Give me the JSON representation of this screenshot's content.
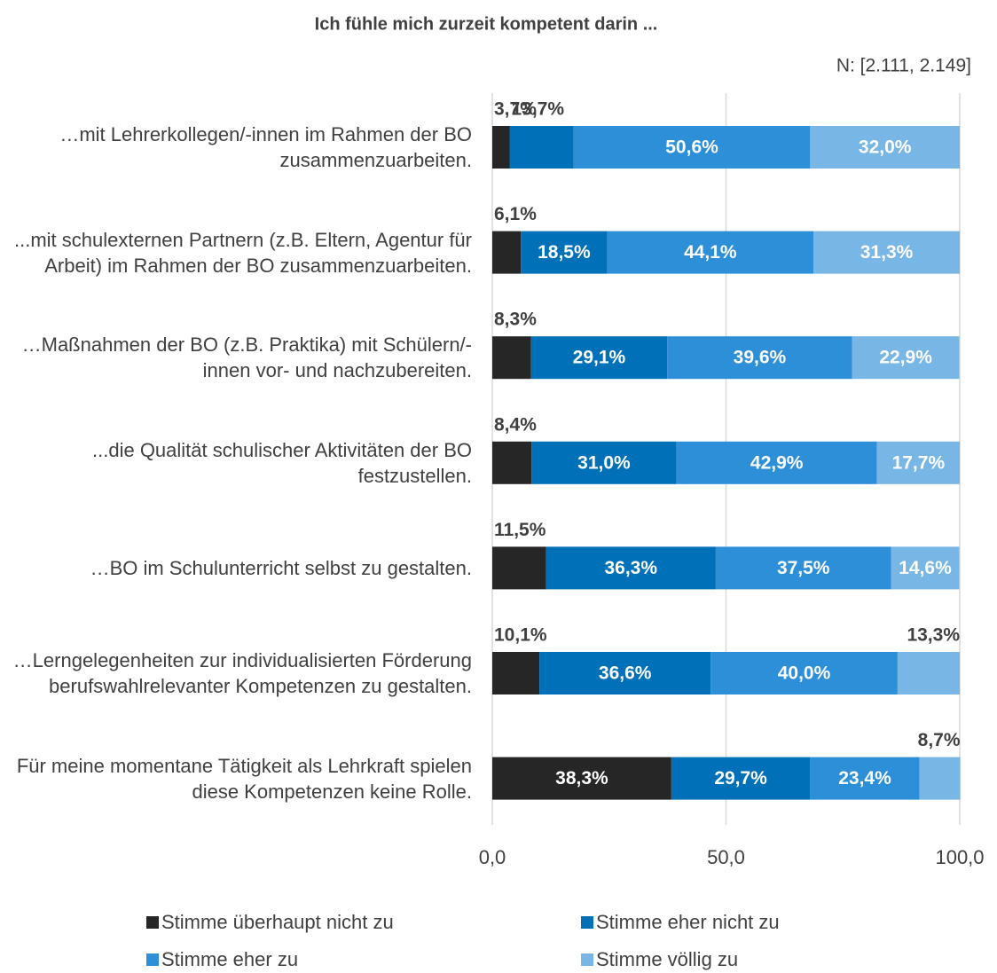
{
  "chart_data": {
    "type": "stacked-bar-horizontal",
    "title": "Ich fühle mich zurzeit kompetent darin ...",
    "subtitle": "N: [2.111, 2.149]",
    "categories": [
      "…mit Lehrerkollegen/-innen im Rahmen der BO zusammenzuarbeiten.",
      "...mit schulexternen Partnern (z.B. Eltern, Agentur für Arbeit) im Rahmen der BO zusammenzuarbeiten.",
      "…Maßnahmen der BO (z.B. Praktika) mit Schülern/-innen vor- und nachzubereiten.",
      "...die Qualität schulischer Aktivitäten der BO festzustellen.",
      "…BO im Schulunterricht selbst zu gestalten.",
      "…Lerngelegenheiten zur individualisierten Förderung berufswahlrelevanter Kompetenzen zu gestalten.",
      "Für meine momentane Tätigkeit als Lehrkraft spielen diese Kompetenzen keine Rolle."
    ],
    "series": [
      {
        "name": "Stimme überhaupt nicht zu",
        "color": "#262626",
        "values": [
          3.7,
          6.1,
          8.3,
          8.4,
          11.5,
          10.1,
          38.3
        ],
        "value_labels": [
          "3,7%",
          "6,1%",
          "8,3%",
          "8,4%",
          "11,5%",
          "10,1%",
          "38,3%"
        ]
      },
      {
        "name": "Stimme eher nicht zu",
        "color": "#0070b8",
        "values": [
          13.7,
          18.5,
          29.1,
          31.0,
          36.3,
          36.6,
          29.7
        ],
        "value_labels": [
          "13,7%",
          "18,5%",
          "29,1%",
          "31,0%",
          "36,3%",
          "36,6%",
          "29,7%"
        ]
      },
      {
        "name": "Stimme eher zu",
        "color": "#2e8fd9",
        "values": [
          50.6,
          44.1,
          39.6,
          42.9,
          37.5,
          40.0,
          23.4
        ],
        "value_labels": [
          "50,6%",
          "44,1%",
          "39,6%",
          "42,9%",
          "37,5%",
          "40,0%",
          "23,4%"
        ]
      },
      {
        "name": "Stimme völlig zu",
        "color": "#78b6e6",
        "values": [
          32.0,
          31.3,
          22.9,
          17.7,
          14.6,
          13.3,
          8.7
        ],
        "value_labels": [
          "32,0%",
          "31,3%",
          "22,9%",
          "17,7%",
          "14,6%",
          "13,3%",
          "8,7%"
        ]
      }
    ],
    "xlim": [
      0,
      100
    ],
    "xticks": [
      {
        "value": 0,
        "label": "0,0"
      },
      {
        "value": 50,
        "label": "50,0"
      },
      {
        "value": 100,
        "label": "100,0"
      }
    ],
    "grid": true
  }
}
